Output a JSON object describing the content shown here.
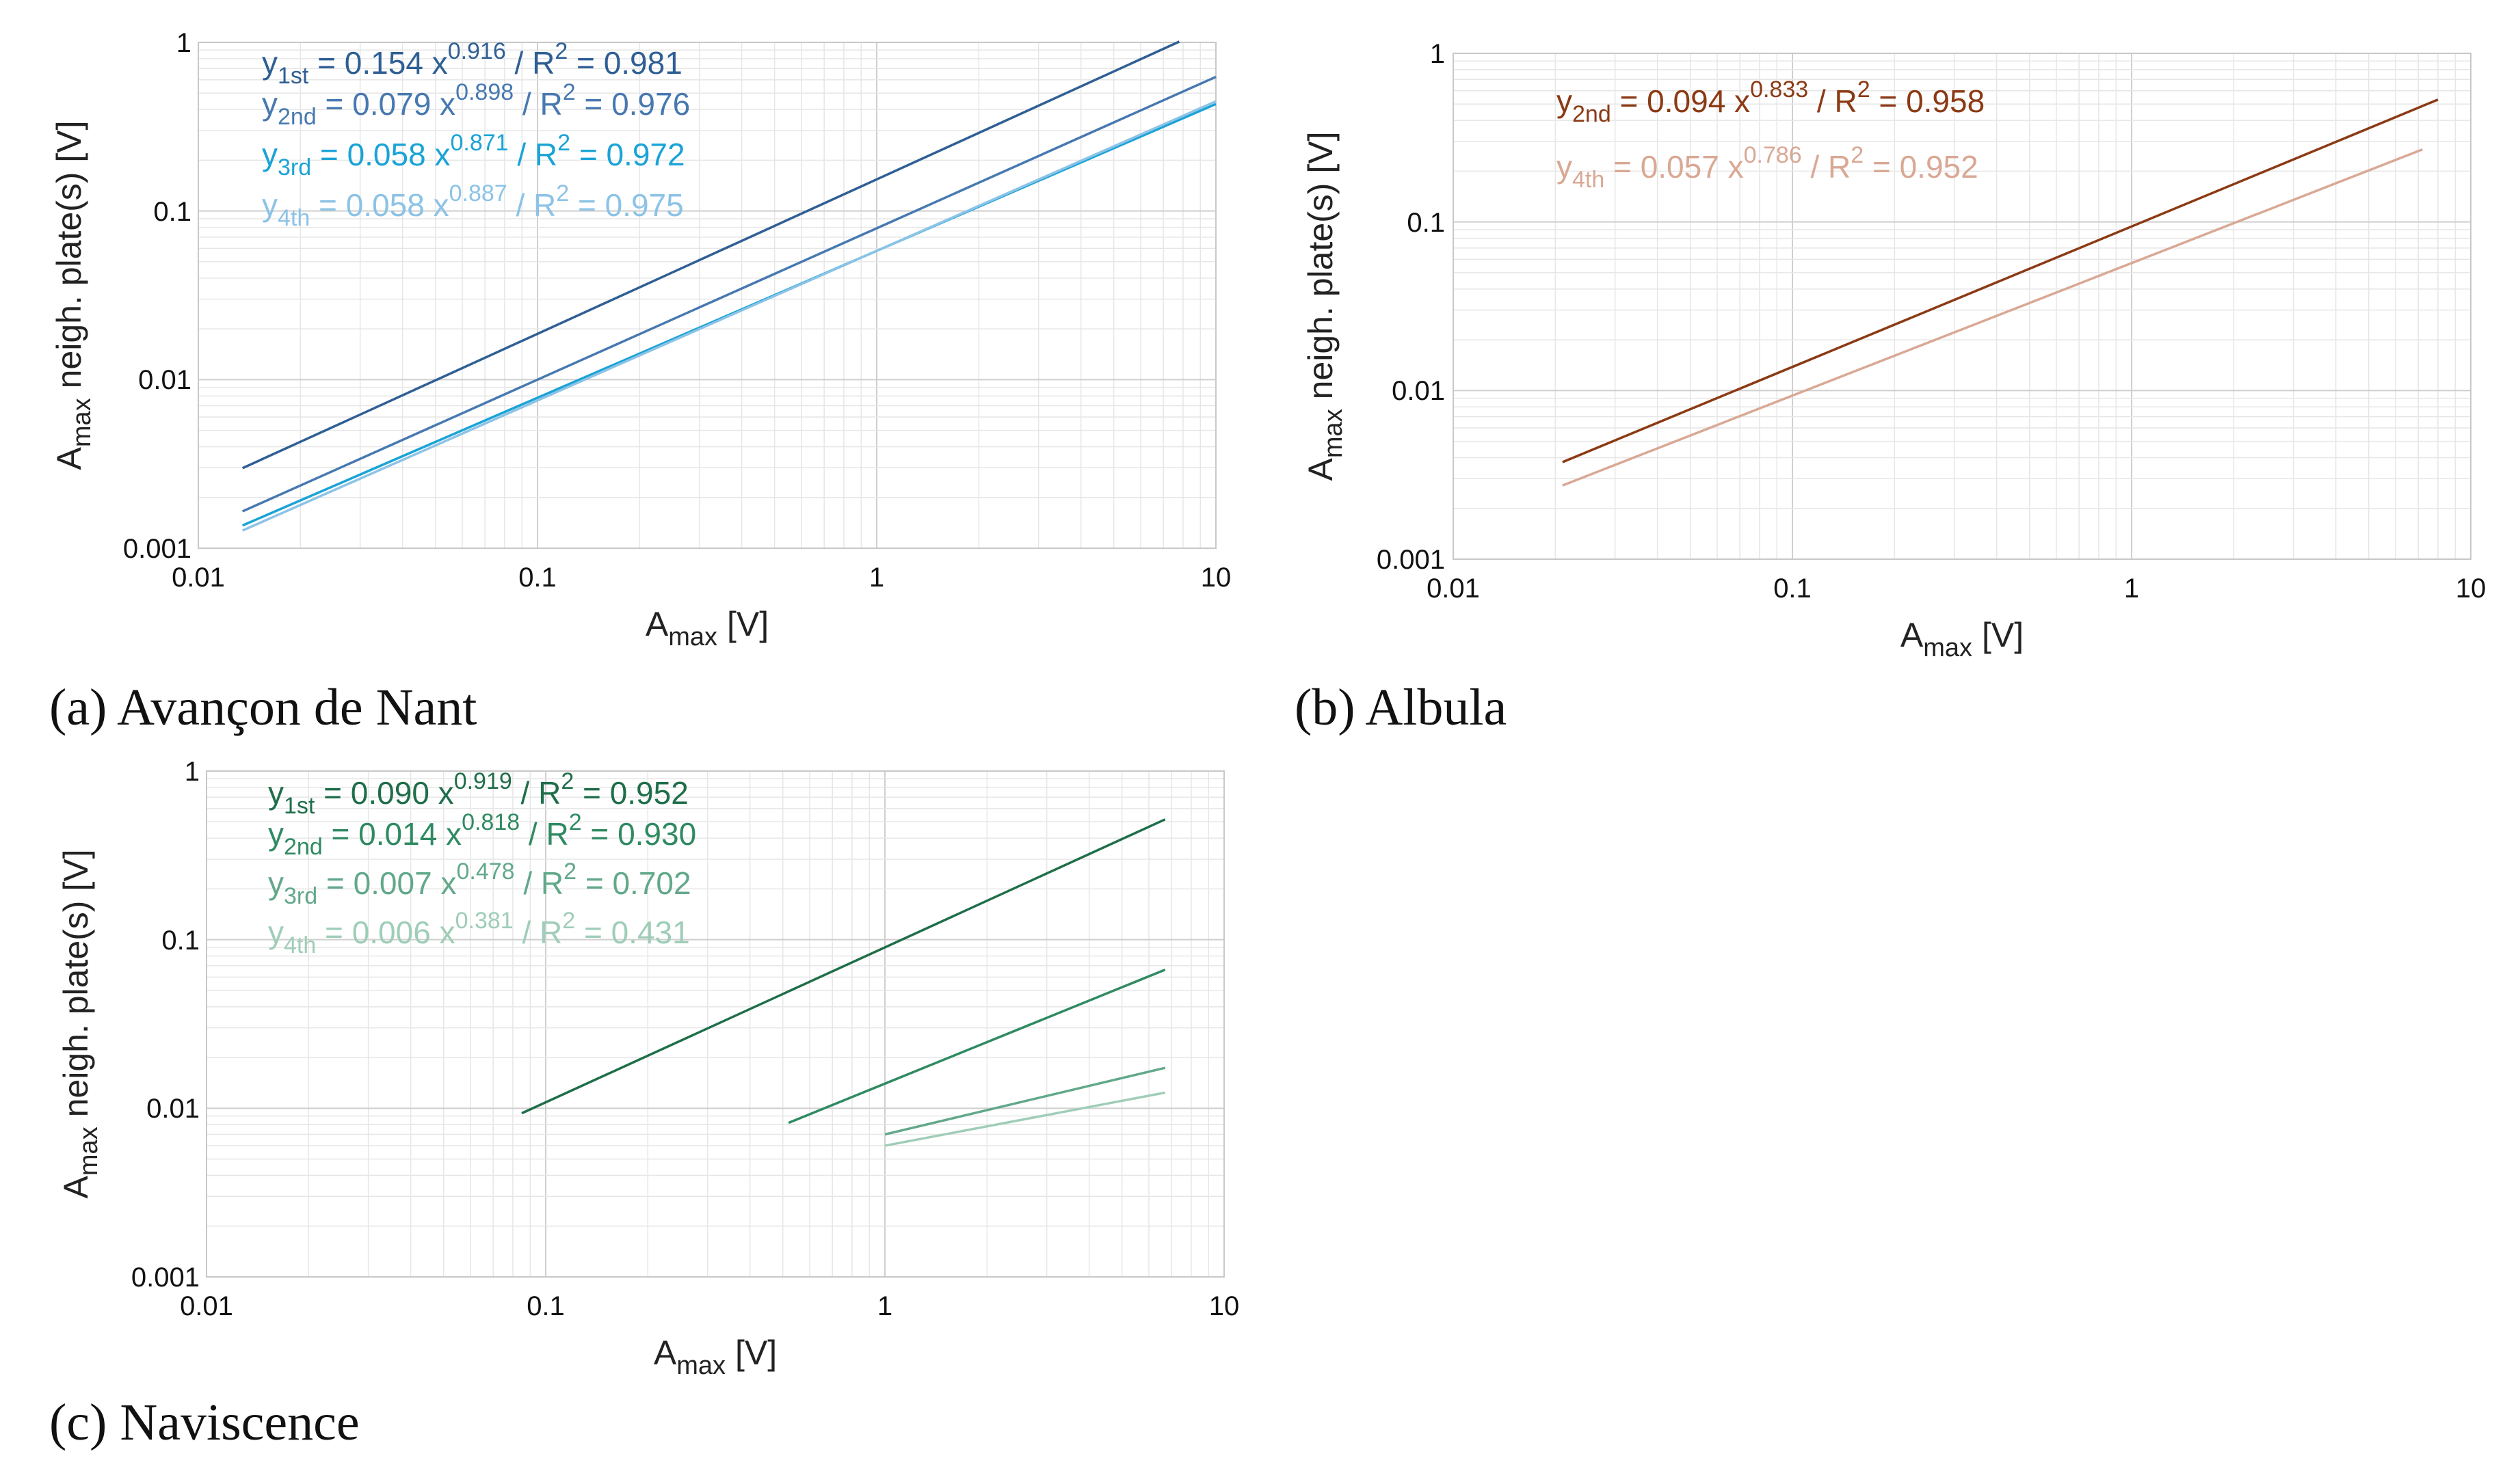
{
  "chart_data": [
    {
      "type": "line",
      "scale": "log-log",
      "caption": "(a) Avançon de Nant",
      "xlabel": {
        "base": "A",
        "sub": "max",
        "rest": " [V]"
      },
      "ylabel": {
        "base": "A",
        "sub": "max",
        "rest": " neigh. plate(s) [V]"
      },
      "xlim": [
        0.01,
        10
      ],
      "ylim": [
        0.001,
        1
      ],
      "x_ticks": [
        "0.01",
        "0.1",
        "1",
        "10"
      ],
      "y_ticks": [
        "0.001",
        "0.01",
        "0.1",
        "1"
      ],
      "grid": true,
      "series": [
        {
          "name": "1st",
          "color": "#2f5f94",
          "a": 0.154,
          "b": 0.916,
          "x_range": [
            0.0135,
            7.8
          ],
          "eq": {
            "y": "y",
            "sub": "1st",
            "mid": " = 0.154 x",
            "exp": "0.916",
            "r": " / R",
            "r2": "2",
            "tail": " = 0.981"
          }
        },
        {
          "name": "2nd",
          "color": "#4779b0",
          "a": 0.079,
          "b": 0.898,
          "x_range": [
            0.0135,
            10
          ],
          "eq": {
            "y": "y",
            "sub": "2nd",
            "mid": " = 0.079 x",
            "exp": "0.898",
            "r": " / R",
            "r2": "2",
            "tail": " = 0.976"
          }
        },
        {
          "name": "3rd",
          "color": "#1aa3d6",
          "a": 0.058,
          "b": 0.871,
          "x_range": [
            0.0135,
            10
          ],
          "eq": {
            "y": "y",
            "sub": "3rd",
            "mid": " = 0.058 x",
            "exp": "0.871",
            "r": " / R",
            "r2": "2",
            "tail": " = 0.972"
          }
        },
        {
          "name": "4th",
          "color": "#8cc3e6",
          "a": 0.058,
          "b": 0.887,
          "x_range": [
            0.0135,
            10
          ],
          "eq": {
            "y": "y",
            "sub": "4th",
            "mid": " = 0.058 x",
            "exp": "0.887",
            "r": " / R",
            "r2": "2",
            "tail": " = 0.975"
          }
        }
      ]
    },
    {
      "type": "line",
      "scale": "log-log",
      "caption": "(b) Albula",
      "xlabel": {
        "base": "A",
        "sub": "max",
        "rest": " [V]"
      },
      "ylabel": {
        "base": "A",
        "sub": "max",
        "rest": " neigh. plate(s) [V]"
      },
      "xlim": [
        0.01,
        10
      ],
      "ylim": [
        0.001,
        1
      ],
      "x_ticks": [
        "0.01",
        "0.1",
        "1",
        "10"
      ],
      "y_ticks": [
        "0.001",
        "0.01",
        "0.1",
        "1"
      ],
      "grid": true,
      "series": [
        {
          "name": "2nd",
          "color": "#8b3a14",
          "a": 0.094,
          "b": 0.833,
          "x_range": [
            0.021,
            8
          ],
          "eq": {
            "y": "y",
            "sub": "2nd",
            "mid": " = 0.094 x",
            "exp": "0.833",
            "r": " / R",
            "r2": "2",
            "tail": " = 0.958"
          }
        },
        {
          "name": "4th",
          "color": "#d9a894",
          "a": 0.057,
          "b": 0.786,
          "x_range": [
            0.021,
            7.2
          ],
          "eq": {
            "y": "y",
            "sub": "4th",
            "mid": " = 0.057 x",
            "exp": "0.786",
            "r": " / R",
            "r2": "2",
            "tail": " = 0.952"
          }
        }
      ]
    },
    {
      "type": "line",
      "scale": "log-log",
      "caption": "(c) Naviscence",
      "xlabel": {
        "base": "A",
        "sub": "max",
        "rest": " [V]"
      },
      "ylabel": {
        "base": "A",
        "sub": "max",
        "rest": " neigh. plate(s) [V]"
      },
      "xlim": [
        0.01,
        10
      ],
      "ylim": [
        0.001,
        1
      ],
      "x_ticks": [
        "0.01",
        "0.1",
        "1",
        "10"
      ],
      "y_ticks": [
        "0.001",
        "0.01",
        "0.1",
        "1"
      ],
      "grid": true,
      "series": [
        {
          "name": "1st",
          "color": "#1f6e4a",
          "a": 0.09,
          "b": 0.919,
          "x_range": [
            0.085,
            6.7
          ],
          "eq": {
            "y": "y",
            "sub": "1st",
            "mid": " = 0.090 x",
            "exp": "0.919",
            "r": " / R",
            "r2": "2",
            "tail": " = 0.952"
          }
        },
        {
          "name": "2nd",
          "color": "#2f8a62",
          "a": 0.014,
          "b": 0.818,
          "x_range": [
            0.52,
            6.7
          ],
          "eq": {
            "y": "y",
            "sub": "2nd",
            "mid": " = 0.014 x",
            "exp": "0.818",
            "r": " / R",
            "r2": "2",
            "tail": " = 0.930"
          }
        },
        {
          "name": "3rd",
          "color": "#62a88a",
          "a": 0.007,
          "b": 0.478,
          "x_range": [
            1.0,
            6.7
          ],
          "eq": {
            "y": "y",
            "sub": "3rd",
            "mid": " = 0.007 x",
            "exp": "0.478",
            "r": " / R",
            "r2": "2",
            "tail": " = 0.702"
          }
        },
        {
          "name": "4th",
          "color": "#9fcdb8",
          "a": 0.006,
          "b": 0.381,
          "x_range": [
            1.0,
            6.7
          ],
          "eq": {
            "y": "y",
            "sub": "4th",
            "mid": " = 0.006 x",
            "exp": "0.381",
            "r": " / R",
            "r2": "2",
            "tail": " = 0.431"
          }
        }
      ]
    }
  ]
}
